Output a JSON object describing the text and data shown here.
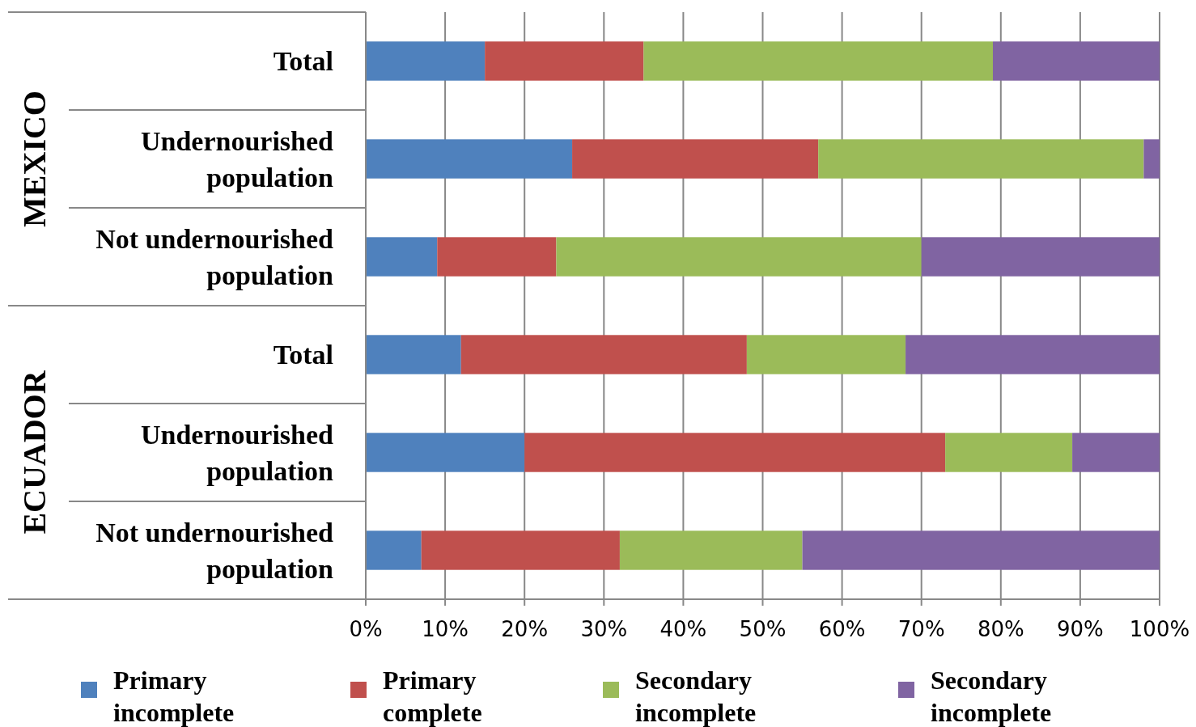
{
  "chart_data": {
    "type": "bar",
    "orientation": "horizontal",
    "stacked": true,
    "categories": [
      "Total",
      "Undernourished population",
      "Not undernourished population",
      "Total",
      "Undernourished population",
      "Not undernourished population"
    ],
    "series": [
      {
        "name": "Primary incomplete",
        "color": "#4f81bd",
        "values": [
          15,
          26,
          9,
          12,
          20,
          7
        ]
      },
      {
        "name": "Primary complete",
        "color": "#c0504d",
        "values": [
          20,
          31,
          15,
          36,
          53,
          25
        ]
      },
      {
        "name": "Secondary incomplete",
        "color": "#9bbb59",
        "values": [
          44,
          41,
          46,
          20,
          16,
          23
        ]
      },
      {
        "name": "Secondary incomplete",
        "color": "#8064a2",
        "values": [
          21,
          2,
          30,
          32,
          11,
          45
        ]
      }
    ],
    "xlim": [
      0,
      100
    ],
    "xticks": [
      {
        "value": 0,
        "label": "0%"
      },
      {
        "value": 10,
        "label": "10%"
      },
      {
        "value": 20,
        "label": "20%"
      },
      {
        "value": 30,
        "label": "30%"
      },
      {
        "value": 40,
        "label": "40%"
      },
      {
        "value": 50,
        "label": "50%"
      },
      {
        "value": 60,
        "label": "60%"
      },
      {
        "value": 70,
        "label": "70%"
      },
      {
        "value": 80,
        "label": "80%"
      },
      {
        "value": 90,
        "label": "90%"
      },
      {
        "value": 100,
        "label": "100%"
      }
    ],
    "annotations": [
      "MEXICO",
      "ECUADOR"
    ],
    "grid": "x",
    "legend": "bottom"
  }
}
